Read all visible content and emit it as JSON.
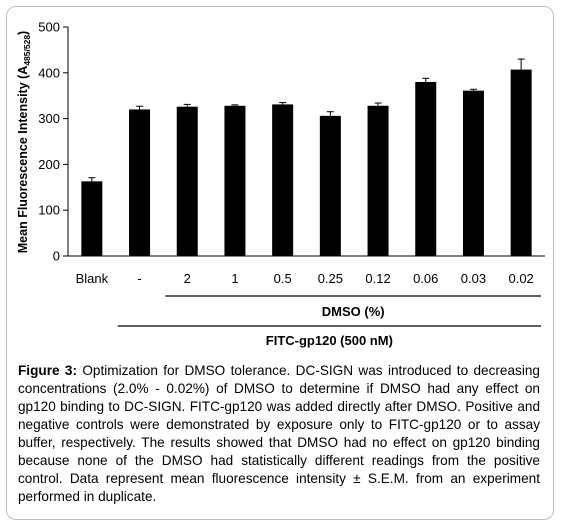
{
  "chart_data": {
    "type": "bar",
    "categories": [
      "Blank",
      "-",
      "2",
      "1",
      "0.5",
      "0.25",
      "0.12",
      "0.06",
      "0.03",
      "0.02"
    ],
    "values": [
      163,
      320,
      326,
      328,
      331,
      306,
      328,
      380,
      361,
      407
    ],
    "errors": [
      8,
      7,
      5,
      2,
      4,
      9,
      6,
      8,
      3,
      23
    ],
    "ylabel_main": "Mean Fluorescence Intensity (A",
    "ylabel_sub": "485/528",
    "ylabel_close": ")",
    "ylim": [
      0,
      500
    ],
    "yticks": [
      0,
      100,
      200,
      300,
      400,
      500
    ],
    "bar_color": "#000000",
    "groups": [
      {
        "label": "DMSO (%)",
        "from": 2,
        "to": 9
      },
      {
        "label": "FITC-gp120 (500 nM)",
        "from": 1,
        "to": 9
      }
    ]
  },
  "caption": {
    "label": "Figure 3:",
    "text": " Optimization for DMSO tolerance. DC-SIGN was introduced to decreasing concentrations (2.0% - 0.02%) of DMSO to determine if DMSO had any effect on gp120 binding to DC-SIGN. FITC-gp120 was added directly after DMSO. Positive and negative controls were demonstrated by exposure only to FITC-gp120 or to assay buffer, respectively. The results showed that DMSO had no effect on gp120 binding because none of the DMSO had statistically different readings from the positive control. Data represent mean fluorescence intensity ± S.E.M. from an experiment performed in duplicate."
  }
}
